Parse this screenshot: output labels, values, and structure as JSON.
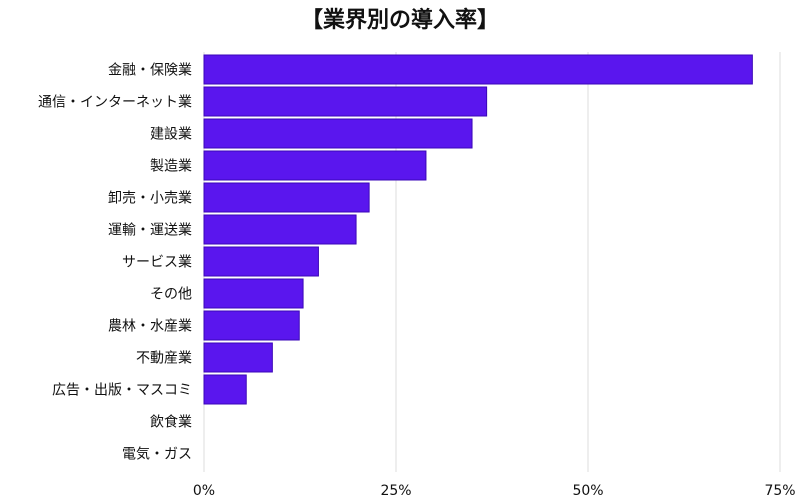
{
  "chart_data": {
    "type": "bar",
    "orientation": "horizontal",
    "title": "【業界別の導入率】",
    "xlabel": "",
    "ylabel": "",
    "xlim": [
      0,
      75
    ],
    "grid": true,
    "ticks": [
      {
        "value": 0,
        "label": "0%"
      },
      {
        "value": 25,
        "label": "25%"
      },
      {
        "value": 50,
        "label": "50%"
      },
      {
        "value": 75,
        "label": "75%"
      }
    ],
    "categories": [
      "金融・保険業",
      "通信・インターネット業",
      "建設業",
      "製造業",
      "卸売・小売業",
      "運輸・運送業",
      "サービス業",
      "その他",
      "農林・水産業",
      "不動産業",
      "広告・出版・マスコミ",
      "飲食業",
      "電気・ガス"
    ],
    "values": [
      71.4,
      36.8,
      34.9,
      28.9,
      21.5,
      19.8,
      14.9,
      12.9,
      12.4,
      8.9,
      5.5,
      0,
      0
    ],
    "bar_color": "#5a16ee"
  }
}
